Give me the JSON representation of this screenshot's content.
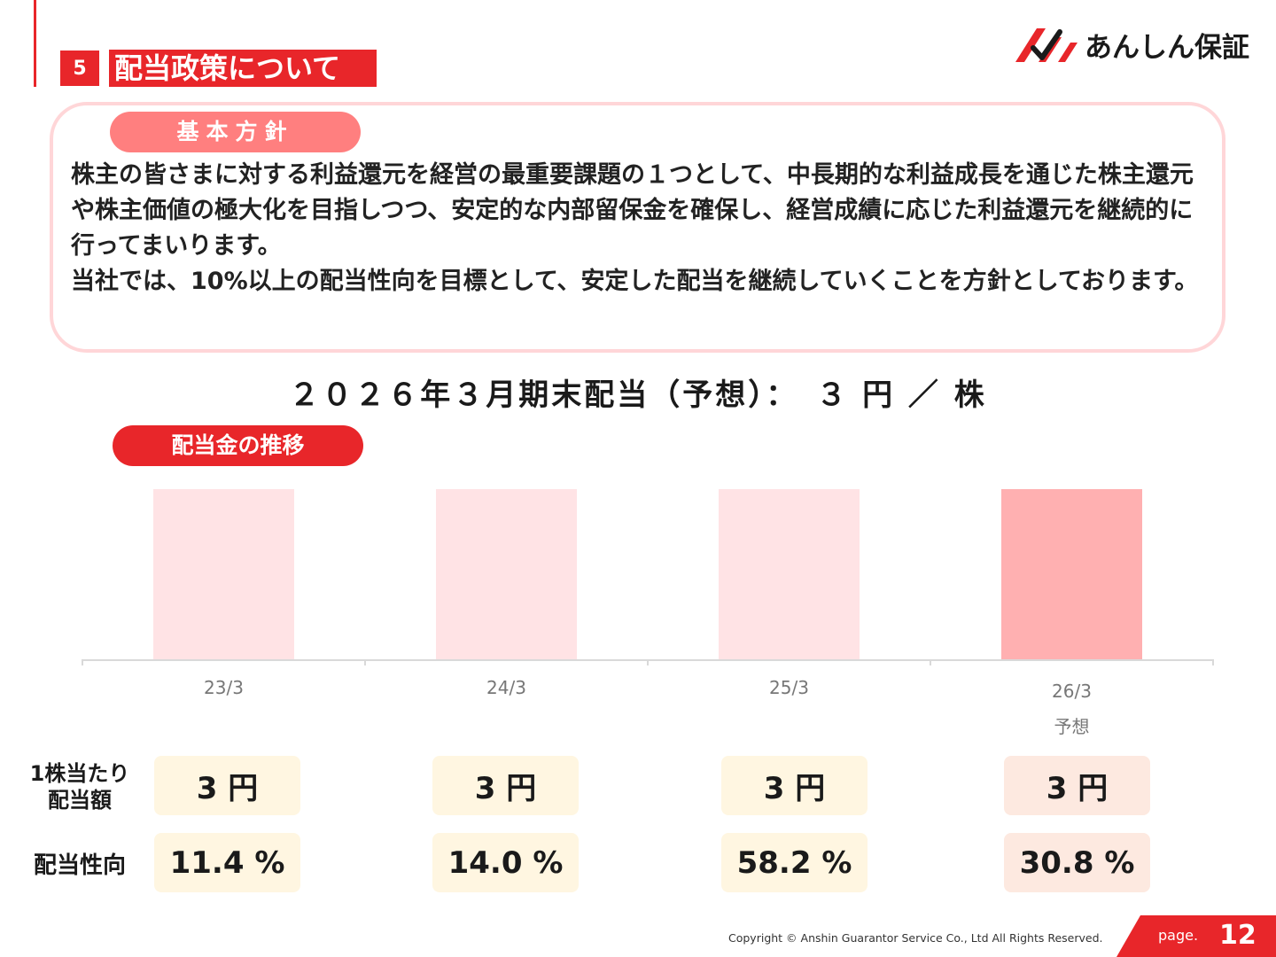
{
  "section": {
    "number": "5",
    "title": "配当政策について"
  },
  "brand": {
    "name": "あんしん保証"
  },
  "policy": {
    "tag": "基本方針",
    "paragraph1": "株主の皆さまに対する利益還元を経営の最重要課題の１つとして、中長期的な利益成長を通じた株主還元や株主価値の極大化を目指しつつ、安定的な内部留保金を確保し、経営成績に応じた利益還元を継続的に行ってまいります。",
    "paragraph2": "当社では、10%以上の配当性向を目標として、安定した配当を継続していくことを方針としております。"
  },
  "headline": "２０２６年３月期末配当（予想）：　３ 円 ／ 株",
  "trend_tag": "配当金の推移",
  "chart_data": {
    "type": "bar",
    "categories": [
      "23/3",
      "24/3",
      "25/3",
      "26/3"
    ],
    "category_notes": [
      "",
      "",
      "",
      "予想"
    ],
    "values": [
      3,
      3,
      3,
      3
    ],
    "unit": "円",
    "colors": [
      "#ffe3e5",
      "#ffe3e5",
      "#ffe3e5",
      "#ffb0b1"
    ],
    "ylim": [
      0,
      3
    ],
    "title": "",
    "xlabel": "",
    "ylabel": ""
  },
  "table": {
    "row1_label_line1": "1株当たり",
    "row1_label_line2": "配当額",
    "row2_label": "配当性向",
    "dividend": [
      "3 円",
      "3 円",
      "3 円",
      "3 円"
    ],
    "payout_ratio": [
      "11.4 %",
      "14.0 %",
      "58.2 %",
      "30.8 %"
    ]
  },
  "footer": {
    "copyright": "Copyright © Anshin Guarantor Service Co., Ltd All Rights Reserved.",
    "page_label": "page.",
    "page_number": "12"
  }
}
